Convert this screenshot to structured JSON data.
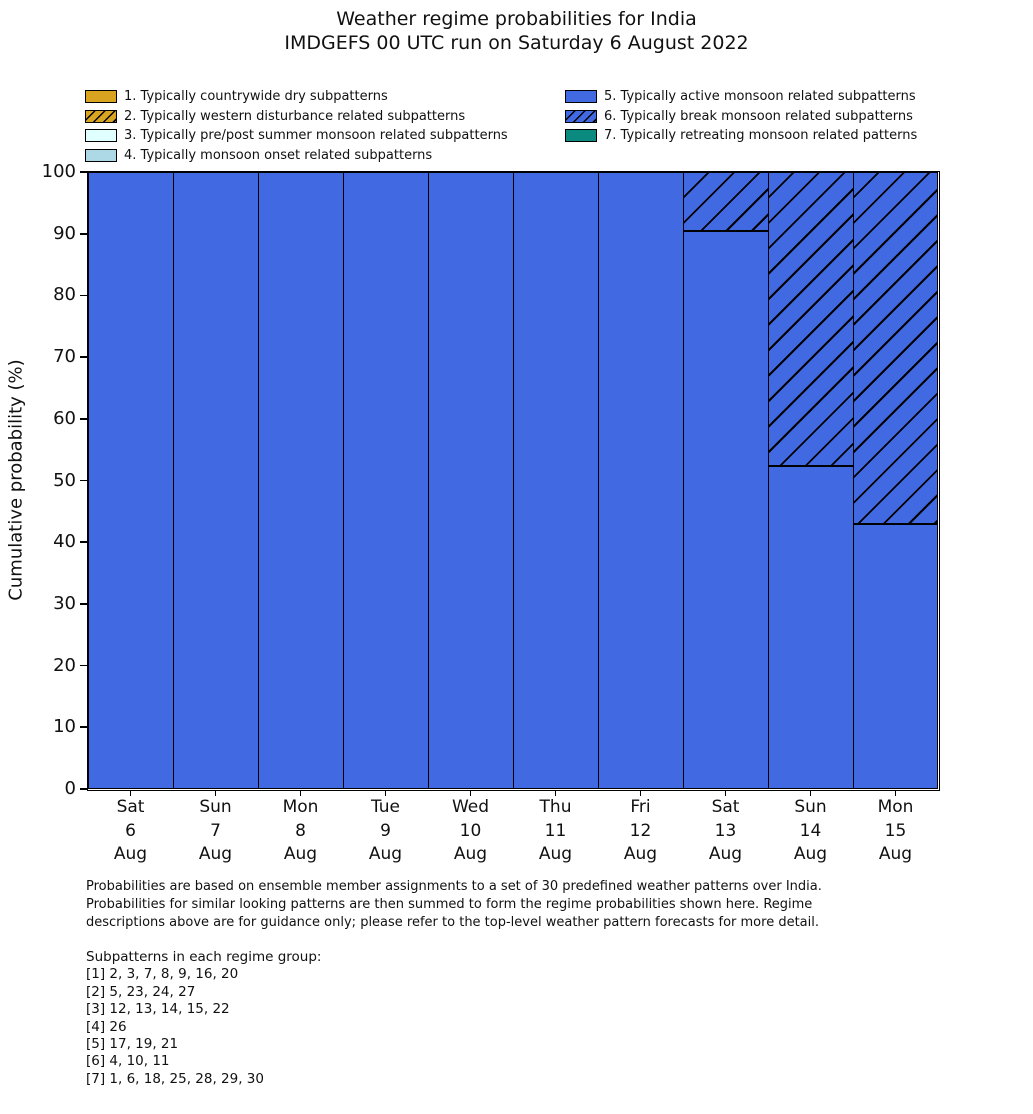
{
  "title": {
    "line1": "Weather regime probabilities for India",
    "line2": "IMDGEFS 00 UTC run on Saturday 6 August 2022"
  },
  "legend": {
    "left_indices": [
      0,
      1,
      2,
      3
    ],
    "right_indices": [
      4,
      5,
      6
    ]
  },
  "chart_data": {
    "type": "bar",
    "stacked": true,
    "title": "Weather regime probabilities for India - IMDGEFS 00 UTC run on Saturday 6 August 2022",
    "xlabel": "",
    "ylabel": "Cumulative probability (%)",
    "ylim": [
      0,
      100
    ],
    "yticks": [
      0,
      10,
      20,
      30,
      40,
      50,
      60,
      70,
      80,
      90,
      100
    ],
    "grid": false,
    "legend_position": "top",
    "categories": [
      "Sat 6 Aug",
      "Sun 7 Aug",
      "Mon 8 Aug",
      "Tue 9 Aug",
      "Wed 10 Aug",
      "Thu 11 Aug",
      "Fri 12 Aug",
      "Sat 13 Aug",
      "Sun 14 Aug",
      "Mon 15 Aug"
    ],
    "categories_multiline": [
      [
        "Sat",
        "6",
        "Aug"
      ],
      [
        "Sun",
        "7",
        "Aug"
      ],
      [
        "Mon",
        "8",
        "Aug"
      ],
      [
        "Tue",
        "9",
        "Aug"
      ],
      [
        "Wed",
        "10",
        "Aug"
      ],
      [
        "Thu",
        "11",
        "Aug"
      ],
      [
        "Fri",
        "12",
        "Aug"
      ],
      [
        "Sat",
        "13",
        "Aug"
      ],
      [
        "Sun",
        "14",
        "Aug"
      ],
      [
        "Mon",
        "15",
        "Aug"
      ]
    ],
    "series": [
      {
        "name": "1. Typically countrywide dry subpatterns",
        "color": "#d9a521",
        "hatch": false,
        "values": [
          0,
          0,
          0,
          0,
          0,
          0,
          0,
          0,
          0,
          0
        ]
      },
      {
        "name": "2. Typically western disturbance related subpatterns",
        "color": "#d9a521",
        "hatch": true,
        "values": [
          0,
          0,
          0,
          0,
          0,
          0,
          0,
          0,
          0,
          0
        ]
      },
      {
        "name": "3. Typically pre/post summer monsoon related subpatterns",
        "color": "#e0ffff",
        "hatch": false,
        "values": [
          0,
          0,
          0,
          0,
          0,
          0,
          0,
          0,
          0,
          0
        ]
      },
      {
        "name": "4. Typically monsoon onset related subpatterns",
        "color": "#add8e6",
        "hatch": false,
        "values": [
          0,
          0,
          0,
          0,
          0,
          0,
          0,
          0,
          0,
          0
        ]
      },
      {
        "name": "5. Typically active monsoon related subpatterns",
        "color": "#4169e1",
        "hatch": false,
        "values": [
          100,
          100,
          100,
          100,
          100,
          100,
          100,
          90.5,
          52.4,
          42.9
        ]
      },
      {
        "name": "6. Typically break monsoon related subpatterns",
        "color": "#4169e1",
        "hatch": true,
        "values": [
          0,
          0,
          0,
          0,
          0,
          0,
          0,
          9.5,
          47.6,
          57.1
        ]
      },
      {
        "name": "7. Typically retreating monsoon related patterns",
        "color": "#0b8a80",
        "hatch": false,
        "values": [
          0,
          0,
          0,
          0,
          0,
          0,
          0,
          0,
          0,
          0
        ]
      }
    ]
  },
  "footer": {
    "lines": [
      "Probabilities are based on ensemble member assignments to a set of 30 predefined weather patterns over India.",
      "Probabilities for similar looking patterns are then summed to form the regime probabilities shown here. Regime",
      "descriptions above are for guidance only; please refer to the top-level weather pattern forecasts for more detail."
    ]
  },
  "subpatterns": {
    "heading": "Subpatterns in each regime group:",
    "lines": [
      "[1] 2, 3, 7, 8, 9, 16, 20",
      "[2] 5, 23, 24, 27",
      "[3] 12, 13, 14, 15, 22",
      "[4] 26",
      "[5] 17, 19, 21",
      "[6] 4, 10, 11",
      "[7] 1, 6, 18, 25, 28, 29, 30"
    ]
  }
}
